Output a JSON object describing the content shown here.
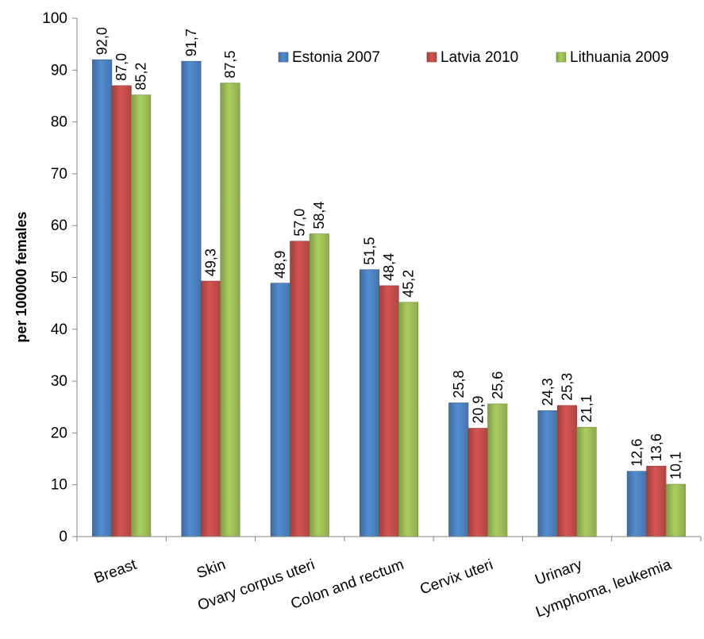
{
  "chart_data": {
    "type": "bar",
    "title": "",
    "xlabel": "",
    "ylabel": "per 100000 females",
    "ylim": [
      0,
      100
    ],
    "yticks": [
      0,
      10,
      20,
      30,
      40,
      50,
      60,
      70,
      80,
      90,
      100
    ],
    "grid": false,
    "legend_position": "top-right",
    "categories": [
      "Breast",
      "Skin",
      "Ovary corpus uteri",
      "Colon and rectum",
      "Cervix uteri",
      "Urinary",
      "Lymphoma, leukemia"
    ],
    "series": [
      {
        "name": "Estonia 2007",
        "color": "#4a7ebb",
        "values": [
          92.0,
          91.7,
          48.9,
          51.5,
          25.8,
          24.3,
          12.6
        ],
        "labels": [
          "92,0",
          "91,7",
          "48,9",
          "51,5",
          "25,8",
          "24,3",
          "12,6"
        ]
      },
      {
        "name": "Latvia 2010",
        "color": "#be4b48",
        "values": [
          87.0,
          49.3,
          57.0,
          48.4,
          20.9,
          25.3,
          13.6
        ],
        "labels": [
          "87,0",
          "49,3",
          "57,0",
          "48,4",
          "20,9",
          "25,3",
          "13,6"
        ]
      },
      {
        "name": "Lithuania 2009",
        "color": "#98b954",
        "values": [
          85.2,
          87.5,
          58.4,
          45.2,
          25.6,
          21.1,
          10.1
        ],
        "labels": [
          "85,2",
          "87,5",
          "58,4",
          "45,2",
          "25,6",
          "21,1",
          "10,1"
        ]
      }
    ]
  }
}
